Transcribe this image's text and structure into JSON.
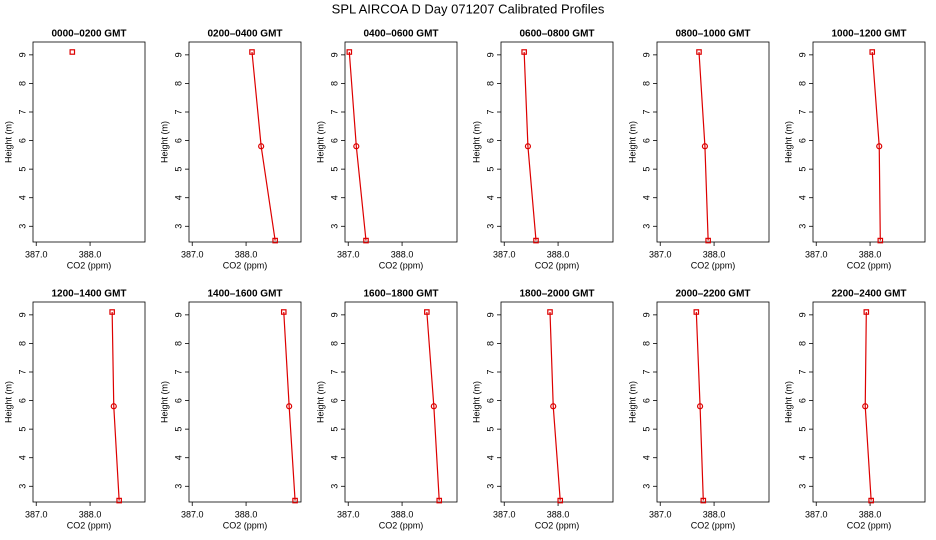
{
  "title": "SPL AIRCOA D  Day 071207  Calibrated Profiles",
  "chart_data": [
    {
      "type": "line",
      "title": "0000–0200 GMT",
      "x_label": "CO2 (ppm)",
      "y_label": "Height (m)",
      "color": "#dd0000",
      "x": [
        387.67
      ],
      "values": [
        9.1
      ],
      "xlim": [
        386.94,
        389.02
      ],
      "ylim": [
        2.45,
        9.45
      ],
      "xticks": [
        {
          "value": 387,
          "label": "387.0"
        },
        {
          "value": 388,
          "label": "388.0"
        }
      ],
      "yticks": [
        3,
        4,
        5,
        6,
        7,
        8,
        9
      ]
    },
    {
      "type": "line",
      "title": "0200–0400 GMT",
      "x_label": "CO2 (ppm)",
      "y_label": "Height (m)",
      "color": "#dd0000",
      "x": [
        388.11,
        388.28,
        388.54
      ],
      "values": [
        9.1,
        5.8,
        2.5
      ],
      "xlim": [
        386.94,
        389.02
      ],
      "ylim": [
        2.45,
        9.45
      ],
      "xticks": [
        {
          "value": 387,
          "label": "387.0"
        },
        {
          "value": 388,
          "label": "388.0"
        }
      ],
      "yticks": [
        3,
        4,
        5,
        6,
        7,
        8,
        9
      ]
    },
    {
      "type": "line",
      "title": "0400–0600 GMT",
      "x_label": "CO2 (ppm)",
      "y_label": "Height (m)",
      "color": "#dd0000",
      "x": [
        387.02,
        387.15,
        387.33
      ],
      "values": [
        9.1,
        5.8,
        2.5
      ],
      "xlim": [
        386.94,
        389.02
      ],
      "ylim": [
        2.45,
        9.45
      ],
      "xticks": [
        {
          "value": 387,
          "label": "387.0"
        },
        {
          "value": 388,
          "label": "388.0"
        }
      ],
      "yticks": [
        3,
        4,
        5,
        6,
        7,
        8,
        9
      ]
    },
    {
      "type": "line",
      "title": "0600–0800 GMT",
      "x_label": "CO2 (ppm)",
      "y_label": "Height (m)",
      "color": "#dd0000",
      "x": [
        387.37,
        387.44,
        387.59
      ],
      "values": [
        9.1,
        5.8,
        2.5
      ],
      "xlim": [
        386.94,
        389.02
      ],
      "ylim": [
        2.45,
        9.45
      ],
      "xticks": [
        {
          "value": 387,
          "label": "387.0"
        },
        {
          "value": 388,
          "label": "388.0"
        }
      ],
      "yticks": [
        3,
        4,
        5,
        6,
        7,
        8,
        9
      ]
    },
    {
      "type": "line",
      "title": "0800–1000 GMT",
      "x_label": "CO2 (ppm)",
      "y_label": "Height (m)",
      "color": "#dd0000",
      "x": [
        387.72,
        387.83,
        387.89
      ],
      "values": [
        9.1,
        5.8,
        2.5
      ],
      "xlim": [
        386.94,
        389.02
      ],
      "ylim": [
        2.45,
        9.45
      ],
      "xticks": [
        {
          "value": 387,
          "label": "387.0"
        },
        {
          "value": 388,
          "label": "388.0"
        }
      ],
      "yticks": [
        3,
        4,
        5,
        6,
        7,
        8,
        9
      ]
    },
    {
      "type": "line",
      "title": "1000–1200 GMT",
      "x_label": "CO2 (ppm)",
      "y_label": "Height (m)",
      "color": "#dd0000",
      "x": [
        388.04,
        388.17,
        388.19
      ],
      "values": [
        9.1,
        5.8,
        2.5
      ],
      "xlim": [
        386.94,
        389.02
      ],
      "ylim": [
        2.45,
        9.45
      ],
      "xticks": [
        {
          "value": 387,
          "label": "387.0"
        },
        {
          "value": 388,
          "label": "388.0"
        }
      ],
      "yticks": [
        3,
        4,
        5,
        6,
        7,
        8,
        9
      ]
    },
    {
      "type": "line",
      "title": "1200–1400 GMT",
      "x_label": "CO2 (ppm)",
      "y_label": "Height (m)",
      "color": "#dd0000",
      "x": [
        388.41,
        388.44,
        388.54
      ],
      "values": [
        9.1,
        5.8,
        2.5
      ],
      "xlim": [
        386.94,
        389.02
      ],
      "ylim": [
        2.45,
        9.45
      ],
      "xticks": [
        {
          "value": 387,
          "label": "387.0"
        },
        {
          "value": 388,
          "label": "388.0"
        }
      ],
      "yticks": [
        3,
        4,
        5,
        6,
        7,
        8,
        9
      ]
    },
    {
      "type": "line",
      "title": "1400–1600 GMT",
      "x_label": "CO2 (ppm)",
      "y_label": "Height (m)",
      "color": "#dd0000",
      "x": [
        388.7,
        388.8,
        388.91
      ],
      "values": [
        9.1,
        5.8,
        2.5
      ],
      "xlim": [
        386.94,
        389.02
      ],
      "ylim": [
        2.45,
        9.45
      ],
      "xticks": [
        {
          "value": 387,
          "label": "387.0"
        },
        {
          "value": 388,
          "label": "388.0"
        }
      ],
      "yticks": [
        3,
        4,
        5,
        6,
        7,
        8,
        9
      ]
    },
    {
      "type": "line",
      "title": "1600–1800 GMT",
      "x_label": "CO2 (ppm)",
      "y_label": "Height (m)",
      "color": "#dd0000",
      "x": [
        388.46,
        388.59,
        388.69
      ],
      "values": [
        9.1,
        5.8,
        2.5
      ],
      "xlim": [
        386.94,
        389.02
      ],
      "ylim": [
        2.45,
        9.45
      ],
      "xticks": [
        {
          "value": 387,
          "label": "387.0"
        },
        {
          "value": 388,
          "label": "388.0"
        }
      ],
      "yticks": [
        3,
        4,
        5,
        6,
        7,
        8,
        9
      ]
    },
    {
      "type": "line",
      "title": "1800–2000 GMT",
      "x_label": "CO2 (ppm)",
      "y_label": "Height (m)",
      "color": "#dd0000",
      "x": [
        387.85,
        387.91,
        388.04
      ],
      "values": [
        9.1,
        5.8,
        2.5
      ],
      "xlim": [
        386.94,
        389.02
      ],
      "ylim": [
        2.45,
        9.45
      ],
      "xticks": [
        {
          "value": 387,
          "label": "387.0"
        },
        {
          "value": 388,
          "label": "388.0"
        }
      ],
      "yticks": [
        3,
        4,
        5,
        6,
        7,
        8,
        9
      ]
    },
    {
      "type": "line",
      "title": "2000–2200 GMT",
      "x_label": "CO2 (ppm)",
      "y_label": "Height (m)",
      "color": "#dd0000",
      "x": [
        387.67,
        387.74,
        387.8
      ],
      "values": [
        9.1,
        5.8,
        2.5
      ],
      "xlim": [
        386.94,
        389.02
      ],
      "ylim": [
        2.45,
        9.45
      ],
      "xticks": [
        {
          "value": 387,
          "label": "387.0"
        },
        {
          "value": 388,
          "label": "388.0"
        }
      ],
      "yticks": [
        3,
        4,
        5,
        6,
        7,
        8,
        9
      ]
    },
    {
      "type": "line",
      "title": "2200–2400 GMT",
      "x_label": "CO2 (ppm)",
      "y_label": "Height (m)",
      "color": "#dd0000",
      "x": [
        387.93,
        387.91,
        388.02
      ],
      "values": [
        9.1,
        5.8,
        2.5
      ],
      "xlim": [
        386.94,
        389.02
      ],
      "ylim": [
        2.45,
        9.45
      ],
      "xticks": [
        {
          "value": 387,
          "label": "387.0"
        },
        {
          "value": 388,
          "label": "388.0"
        }
      ],
      "yticks": [
        3,
        4,
        5,
        6,
        7,
        8,
        9
      ]
    }
  ]
}
